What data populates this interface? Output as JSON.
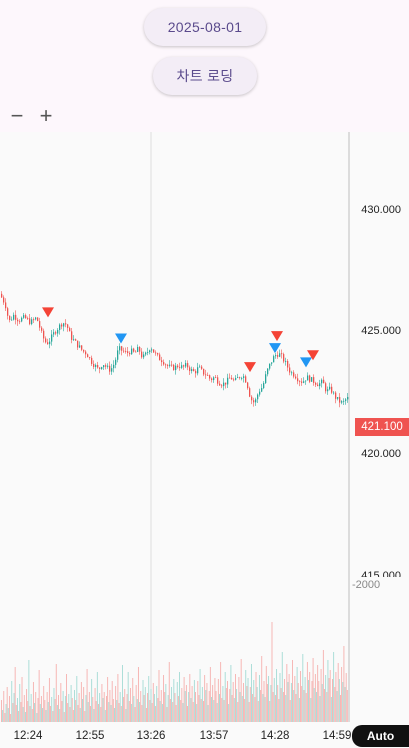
{
  "header": {
    "date_button": "2025-08-01",
    "load_button": "차트 로딩",
    "zoom_out": "−",
    "zoom_in": "+"
  },
  "chart_data": {
    "type": "candlestick",
    "y_ticks": [
      "430.000",
      "425.000",
      "420.000",
      "415.000"
    ],
    "x_ticks": [
      "12:24",
      "12:55",
      "13:26",
      "13:57",
      "14:28",
      "14:59"
    ],
    "ylim": [
      413.6,
      432.3
    ],
    "last_price": "421.100",
    "volume_axis_label": "2000",
    "auto_button": "Auto",
    "up_color": "#26a69a",
    "down_color": "#ef5350",
    "buy_marker_color": "#2196f3",
    "sell_marker_color": "#f44336",
    "price_path": [
      [
        0,
        425.5
      ],
      [
        4,
        425.3
      ],
      [
        8,
        424.9
      ],
      [
        10,
        424.3
      ],
      [
        15,
        424.6
      ],
      [
        20,
        424.4
      ],
      [
        26,
        424.5
      ],
      [
        32,
        424.3
      ],
      [
        38,
        424.5
      ],
      [
        44,
        423.7
      ],
      [
        48,
        423.4
      ],
      [
        52,
        423.6
      ],
      [
        56,
        423.9
      ],
      [
        60,
        424.1
      ],
      [
        64,
        424.3
      ],
      [
        68,
        424.2
      ],
      [
        72,
        423.7
      ],
      [
        76,
        423.5
      ],
      [
        80,
        423.3
      ],
      [
        84,
        423.1
      ],
      [
        88,
        423.0
      ],
      [
        92,
        422.7
      ],
      [
        96,
        422.5
      ],
      [
        100,
        422.3
      ],
      [
        104,
        422.6
      ],
      [
        108,
        422.4
      ],
      [
        112,
        422.3
      ],
      [
        116,
        422.6
      ],
      [
        118,
        422.9
      ],
      [
        120,
        423.2
      ],
      [
        124,
        423.1
      ],
      [
        128,
        423.0
      ],
      [
        132,
        423.1
      ],
      [
        136,
        423.0
      ],
      [
        140,
        423.2
      ],
      [
        144,
        422.8
      ],
      [
        148,
        423.0
      ],
      [
        152,
        423.3
      ],
      [
        156,
        423.0
      ],
      [
        160,
        422.8
      ],
      [
        164,
        422.7
      ],
      [
        168,
        422.5
      ],
      [
        172,
        422.4
      ],
      [
        176,
        422.4
      ],
      [
        180,
        422.5
      ],
      [
        184,
        422.4
      ],
      [
        188,
        422.5
      ],
      [
        192,
        422.3
      ],
      [
        196,
        422.2
      ],
      [
        200,
        422.4
      ],
      [
        204,
        422.2
      ],
      [
        208,
        422.1
      ],
      [
        212,
        421.9
      ],
      [
        216,
        422.0
      ],
      [
        220,
        421.8
      ],
      [
        224,
        421.7
      ],
      [
        228,
        421.8
      ],
      [
        232,
        422.0
      ],
      [
        236,
        421.8
      ],
      [
        240,
        422.0
      ],
      [
        244,
        422.1
      ],
      [
        248,
        421.8
      ],
      [
        252,
        421.1
      ],
      [
        256,
        420.9
      ],
      [
        260,
        421.4
      ],
      [
        264,
        421.6
      ],
      [
        268,
        422.2
      ],
      [
        272,
        422.6
      ],
      [
        276,
        422.9
      ],
      [
        280,
        423.0
      ],
      [
        284,
        422.8
      ],
      [
        288,
        422.5
      ],
      [
        292,
        422.2
      ],
      [
        296,
        422.1
      ],
      [
        300,
        421.9
      ],
      [
        304,
        421.8
      ],
      [
        308,
        422.0
      ],
      [
        312,
        421.9
      ],
      [
        316,
        421.8
      ],
      [
        320,
        421.7
      ],
      [
        324,
        421.8
      ],
      [
        328,
        421.4
      ],
      [
        332,
        421.5
      ],
      [
        336,
        421.2
      ],
      [
        340,
        421.0
      ],
      [
        344,
        420.9
      ],
      [
        348,
        421.1
      ]
    ],
    "markers": [
      {
        "time_x": 48,
        "price": 424.3,
        "side": "sell"
      },
      {
        "time_x": 121,
        "price": 423.2,
        "side": "buy"
      },
      {
        "time_x": 250,
        "price": 422.0,
        "side": "sell"
      },
      {
        "time_x": 275,
        "price": 422.8,
        "side": "buy"
      },
      {
        "time_x": 277,
        "price": 423.3,
        "side": "sell"
      },
      {
        "time_x": 306,
        "price": 422.2,
        "side": "buy"
      },
      {
        "time_x": 313,
        "price": 422.5,
        "side": "sell"
      }
    ],
    "volume_ratio": [
      0.22,
      0.12,
      0.31,
      0.09,
      0.18,
      0.35,
      0.14,
      0.26,
      0.08,
      0.41,
      0.19,
      0.29,
      0.55,
      0.17,
      0.24,
      0.11,
      0.38,
      0.2,
      0.45,
      0.15,
      0.27,
      0.1,
      0.33,
      0.21,
      0.62,
      0.16,
      0.28,
      0.13,
      0.4,
      0.19,
      0.3,
      0.09,
      0.24,
      0.52,
      0.18,
      0.26,
      0.14,
      0.36,
      0.22,
      0.12,
      0.3,
      0.2,
      0.44,
      0.16,
      0.25,
      0.11,
      0.34,
      0.23,
      0.58,
      0.17,
      0.27,
      0.13,
      0.39,
      0.21,
      0.31,
      0.1,
      0.26,
      0.48,
      0.19,
      0.28,
      0.15,
      0.37,
      0.24,
      0.12,
      0.32,
      0.22,
      0.46,
      0.17,
      0.29,
      0.14,
      0.4,
      0.23,
      0.35,
      0.11,
      0.27,
      0.53,
      0.2,
      0.3,
      0.16,
      0.43,
      0.25,
      0.13,
      0.34,
      0.21,
      0.5,
      0.18,
      0.29,
      0.15,
      0.38,
      0.24,
      0.3,
      0.12,
      0.26,
      0.45,
      0.2,
      0.32,
      0.17,
      0.41,
      0.23,
      0.14,
      0.36,
      0.22,
      0.48,
      0.19,
      0.3,
      0.16,
      0.57,
      0.25,
      0.33,
      0.13,
      0.28,
      0.5,
      0.21,
      0.34,
      0.18,
      0.44,
      0.26,
      0.15,
      0.37,
      0.23,
      0.55,
      0.2,
      0.31,
      0.17,
      0.42,
      0.27,
      0.35,
      0.14,
      0.29,
      0.46,
      0.22,
      0.33,
      0.19,
      0.39,
      0.28,
      0.16,
      0.36,
      0.24,
      0.52,
      0.21,
      0.32,
      0.18,
      0.47,
      0.3,
      0.38,
      0.15,
      0.27,
      0.6,
      0.23,
      0.35,
      0.2,
      0.43,
      0.29,
      0.17,
      0.4,
      0.26,
      0.5,
      0.22,
      0.34,
      0.19,
      0.45,
      0.31,
      0.37,
      0.16,
      0.3,
      0.48,
      0.24,
      0.36,
      0.2,
      0.42,
      0.3,
      0.18,
      0.41,
      0.27,
      0.53,
      0.23,
      0.35,
      0.21,
      0.47,
      0.32,
      0.39,
      0.17,
      0.31,
      0.55,
      0.25,
      0.37,
      0.22,
      0.44,
      0.31,
      0.19,
      0.43,
      0.28,
      0.6,
      0.24,
      0.36,
      0.22,
      0.5,
      0.34,
      0.41,
      0.18,
      0.33,
      0.57,
      0.27,
      0.4,
      0.24,
      0.48,
      0.33,
      0.2,
      0.45,
      0.3,
      0.63,
      0.26,
      0.39,
      0.23,
      0.52,
      0.36,
      0.44,
      0.2,
      0.35,
      0.58,
      0.28,
      0.42,
      0.25,
      0.5,
      0.35,
      0.21,
      0.47,
      0.32,
      0.66,
      0.28,
      0.41,
      0.25,
      0.56,
      0.38,
      0.46,
      0.21,
      0.37,
      1.0,
      0.3,
      0.44,
      0.27,
      0.53,
      0.37,
      0.23,
      0.49,
      0.34,
      0.7,
      0.3,
      0.43,
      0.27,
      0.58,
      0.4,
      0.48,
      0.22,
      0.39,
      0.62,
      0.32,
      0.46,
      0.28,
      0.55,
      0.39,
      0.24,
      0.51,
      0.36,
      0.68,
      0.32,
      0.45,
      0.29,
      0.6,
      0.42,
      0.5,
      0.24,
      0.41,
      0.64,
      0.34,
      0.48,
      0.3,
      0.57,
      0.41,
      0.26,
      0.53,
      0.38,
      0.72,
      0.33,
      0.47,
      0.3,
      0.62,
      0.44,
      0.52,
      0.25,
      0.43,
      0.7,
      0.35,
      0.5,
      0.31,
      0.59,
      0.43,
      0.27,
      0.55,
      0.4,
      0.76,
      0.35,
      0.49,
      0.32
    ]
  }
}
